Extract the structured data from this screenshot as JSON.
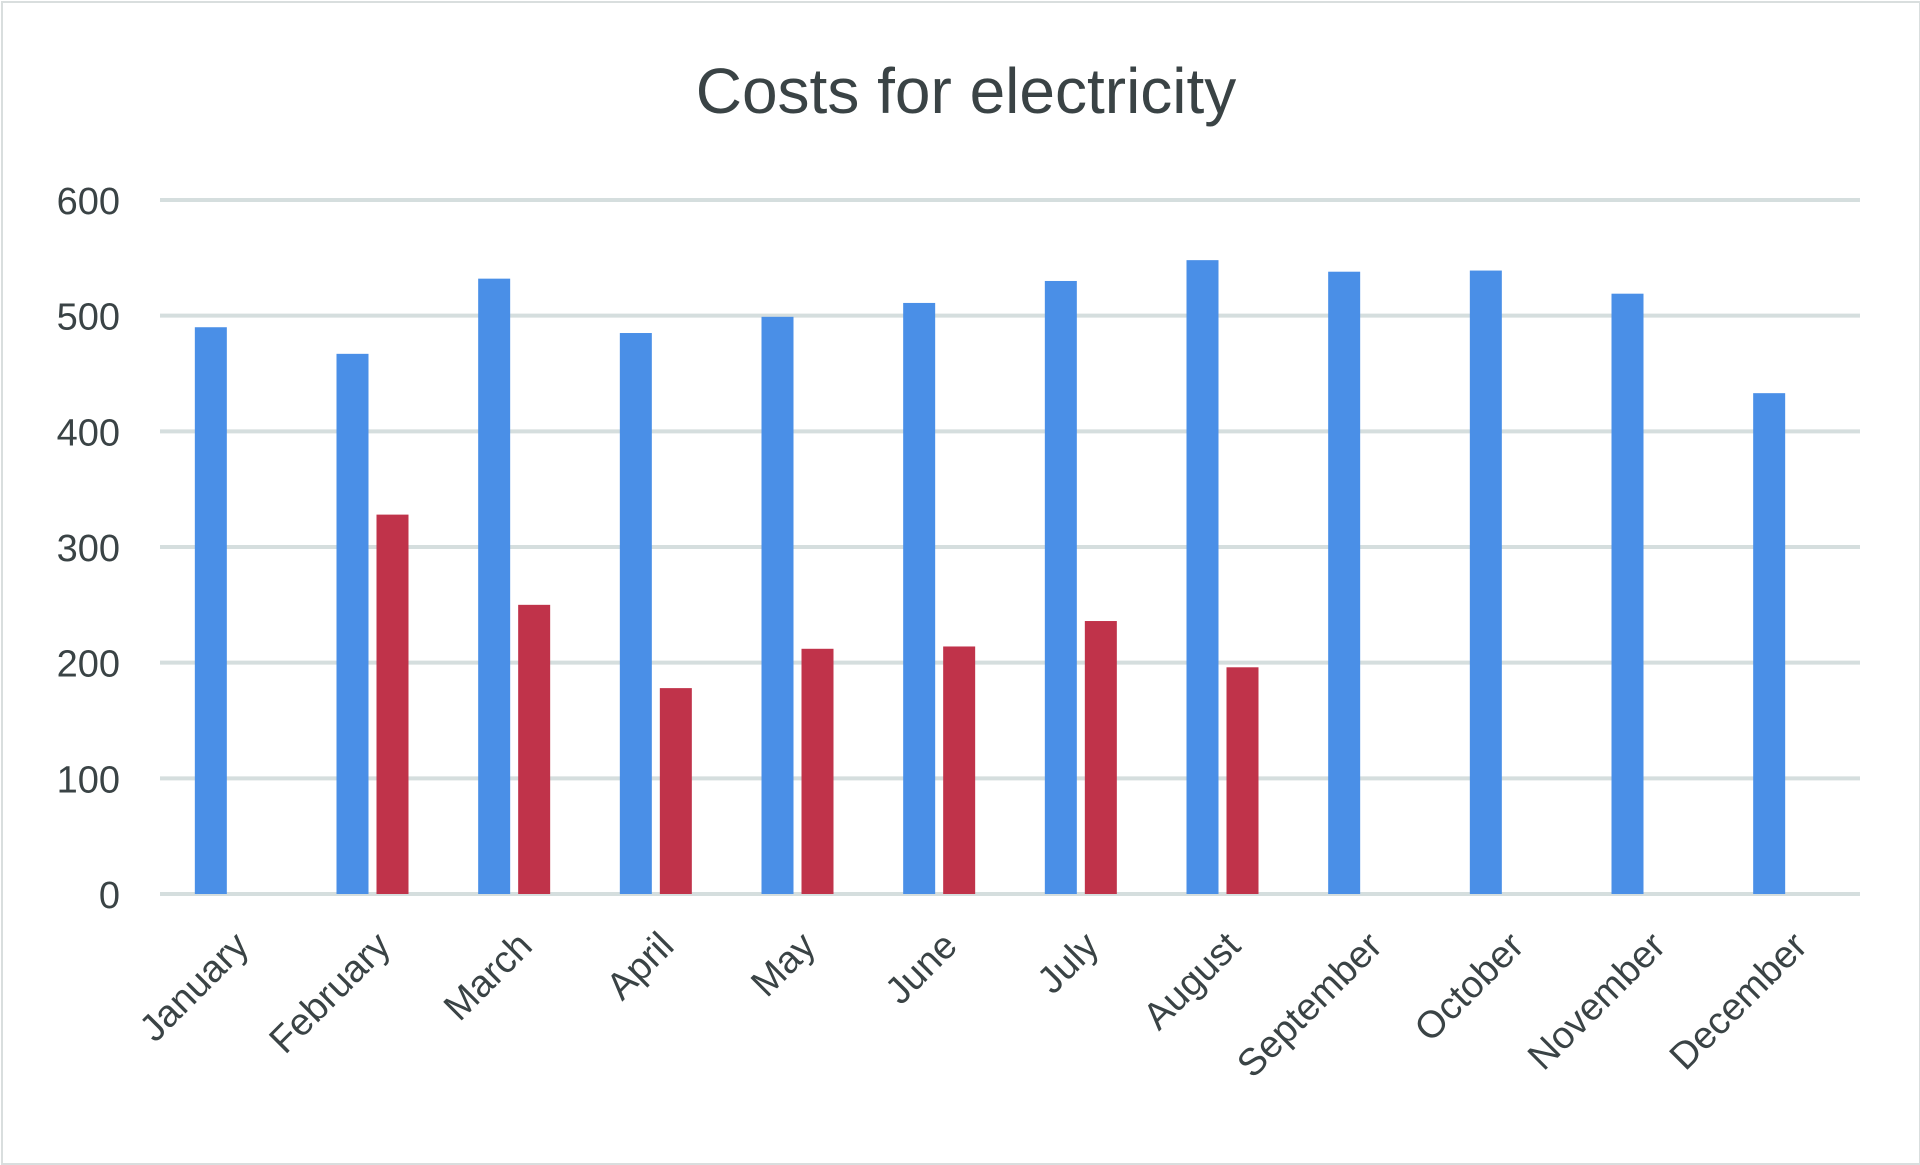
{
  "chart_data": {
    "type": "bar",
    "title": "Costs for electricity",
    "xlabel": "",
    "ylabel": "",
    "ylim": [
      0,
      600
    ],
    "yticks": [
      0,
      100,
      200,
      300,
      400,
      500,
      600
    ],
    "grid": true,
    "legend": "none",
    "categories": [
      "January",
      "February",
      "March",
      "April",
      "May",
      "June",
      "July",
      "August",
      "September",
      "October",
      "November",
      "December"
    ],
    "series": [
      {
        "color": "#4a8fe7",
        "values": [
          490,
          467,
          532,
          485,
          499,
          511,
          530,
          548,
          538,
          539,
          519,
          433
        ]
      },
      {
        "color": "#c0334a",
        "values": [
          null,
          328,
          250,
          178,
          212,
          214,
          236,
          196,
          null,
          null,
          null,
          null
        ]
      }
    ]
  }
}
